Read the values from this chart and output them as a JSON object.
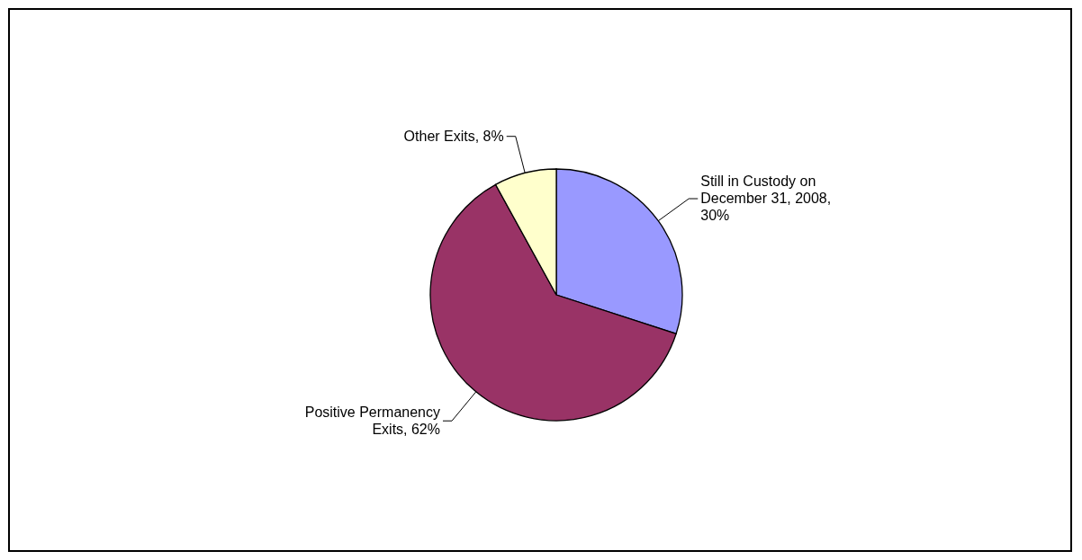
{
  "chart_data": {
    "type": "pie",
    "categories": [
      "Still in Custody on December 31, 2008, 30%",
      "Positive Permanency Exits, 62%",
      "Other Exits, 8%"
    ],
    "values": [
      30,
      62,
      8
    ],
    "colors": [
      "#9999ff",
      "#993366",
      "#ffffcc"
    ]
  }
}
